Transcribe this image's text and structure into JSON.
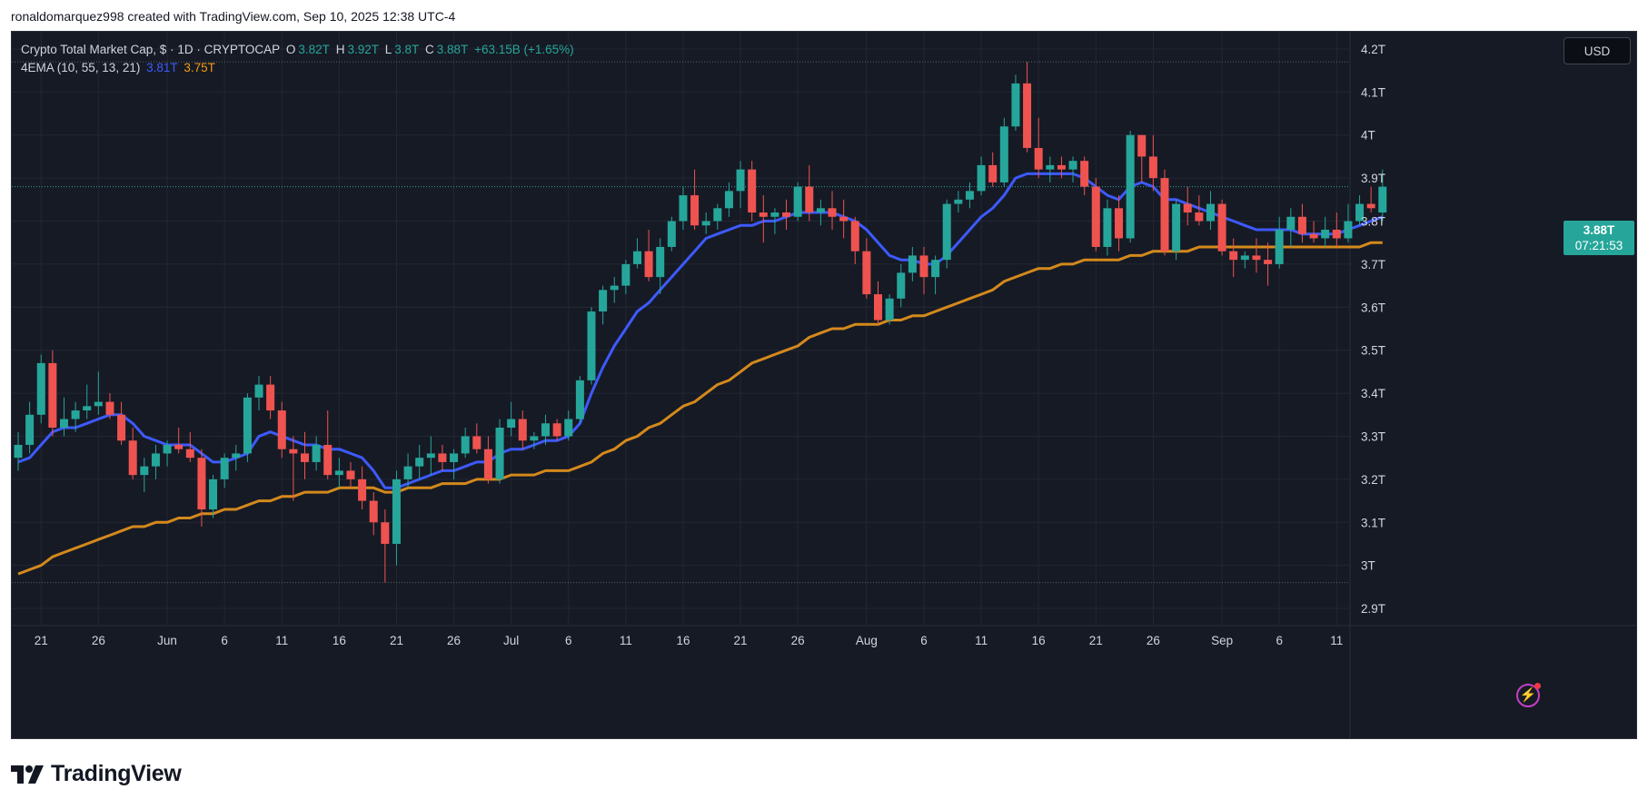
{
  "attribution": "ronaldomarquez998 created with TradingView.com, Sep 10, 2025 12:38 UTC-4",
  "legend": {
    "symbol": "Crypto Total Market Cap, $ · 1D · CRYPTOCAP",
    "open_label": "O",
    "open": "3.82T",
    "high_label": "H",
    "high": "3.92T",
    "low_label": "L",
    "low": "3.8T",
    "close_label": "C",
    "close": "3.88T",
    "change": "+63.15B (+1.65%)",
    "indicator": "4EMA (10, 55, 13, 21)",
    "ema_fast": "3.81T",
    "ema_slow": "3.75T"
  },
  "currency_button": "USD",
  "last_price": {
    "value": "3.88T",
    "countdown": "07:21:53"
  },
  "branding": "TradingView",
  "colors": {
    "up": "#26a69a",
    "down": "#ef5350",
    "ema_fast": "#3d5afe",
    "ema_slow": "#d4891c",
    "background": "#161a25",
    "grid": "#232733"
  },
  "chart_data": {
    "type": "candlestick",
    "unit": "T",
    "ylim": [
      2.86,
      4.24
    ],
    "y_ticks": [
      2.9,
      3.0,
      3.1,
      3.2,
      3.3,
      3.4,
      3.5,
      3.6,
      3.7,
      3.8,
      3.9,
      4.0,
      4.1,
      4.2
    ],
    "y_tick_labels": [
      "2.9T",
      "3T",
      "3.1T",
      "3.2T",
      "3.3T",
      "3.4T",
      "3.5T",
      "3.6T",
      "3.7T",
      "3.8T",
      "3.9T",
      "4T",
      "4.1T",
      "4.2T"
    ],
    "x_ticks": [
      {
        "day": 2,
        "label": "21"
      },
      {
        "day": 7,
        "label": "26"
      },
      {
        "day": 13,
        "label": "Jun"
      },
      {
        "day": 18,
        "label": "6"
      },
      {
        "day": 23,
        "label": "11"
      },
      {
        "day": 28,
        "label": "16"
      },
      {
        "day": 33,
        "label": "21"
      },
      {
        "day": 38,
        "label": "26"
      },
      {
        "day": 43,
        "label": "Jul"
      },
      {
        "day": 48,
        "label": "6"
      },
      {
        "day": 53,
        "label": "11"
      },
      {
        "day": 58,
        "label": "16"
      },
      {
        "day": 63,
        "label": "21"
      },
      {
        "day": 68,
        "label": "26"
      },
      {
        "day": 74,
        "label": "Aug"
      },
      {
        "day": 79,
        "label": "6"
      },
      {
        "day": 84,
        "label": "11"
      },
      {
        "day": 89,
        "label": "16"
      },
      {
        "day": 94,
        "label": "21"
      },
      {
        "day": 99,
        "label": "26"
      },
      {
        "day": 105,
        "label": "Sep"
      },
      {
        "day": 110,
        "label": "6"
      },
      {
        "day": 115,
        "label": "11"
      }
    ],
    "range_high": 4.17,
    "range_low": 2.96,
    "last_close": 3.88,
    "candles": [
      [
        3.25,
        3.31,
        3.22,
        3.28
      ],
      [
        3.28,
        3.38,
        3.26,
        3.35
      ],
      [
        3.35,
        3.49,
        3.33,
        3.47
      ],
      [
        3.47,
        3.5,
        3.3,
        3.32
      ],
      [
        3.32,
        3.39,
        3.3,
        3.34
      ],
      [
        3.34,
        3.38,
        3.31,
        3.36
      ],
      [
        3.36,
        3.42,
        3.34,
        3.37
      ],
      [
        3.37,
        3.45,
        3.35,
        3.38
      ],
      [
        3.38,
        3.4,
        3.34,
        3.35
      ],
      [
        3.35,
        3.38,
        3.28,
        3.29
      ],
      [
        3.29,
        3.32,
        3.2,
        3.21
      ],
      [
        3.21,
        3.25,
        3.17,
        3.23
      ],
      [
        3.23,
        3.28,
        3.2,
        3.26
      ],
      [
        3.26,
        3.29,
        3.23,
        3.28
      ],
      [
        3.28,
        3.32,
        3.26,
        3.27
      ],
      [
        3.27,
        3.31,
        3.24,
        3.25
      ],
      [
        3.25,
        3.27,
        3.09,
        3.13
      ],
      [
        3.13,
        3.21,
        3.11,
        3.2
      ],
      [
        3.2,
        3.26,
        3.18,
        3.25
      ],
      [
        3.25,
        3.28,
        3.22,
        3.26
      ],
      [
        3.26,
        3.4,
        3.24,
        3.39
      ],
      [
        3.39,
        3.44,
        3.36,
        3.42
      ],
      [
        3.42,
        3.44,
        3.34,
        3.36
      ],
      [
        3.36,
        3.38,
        3.25,
        3.27
      ],
      [
        3.27,
        3.3,
        3.15,
        3.26
      ],
      [
        3.26,
        3.31,
        3.2,
        3.24
      ],
      [
        3.24,
        3.3,
        3.22,
        3.28
      ],
      [
        3.28,
        3.36,
        3.2,
        3.21
      ],
      [
        3.21,
        3.25,
        3.18,
        3.22
      ],
      [
        3.22,
        3.24,
        3.18,
        3.2
      ],
      [
        3.2,
        3.23,
        3.13,
        3.15
      ],
      [
        3.15,
        3.17,
        3.07,
        3.1
      ],
      [
        3.1,
        3.13,
        2.96,
        3.05
      ],
      [
        3.05,
        3.22,
        3.0,
        3.2
      ],
      [
        3.2,
        3.26,
        3.18,
        3.23
      ],
      [
        3.23,
        3.28,
        3.2,
        3.25
      ],
      [
        3.25,
        3.3,
        3.21,
        3.26
      ],
      [
        3.26,
        3.28,
        3.22,
        3.24
      ],
      [
        3.24,
        3.27,
        3.2,
        3.26
      ],
      [
        3.26,
        3.32,
        3.25,
        3.3
      ],
      [
        3.3,
        3.33,
        3.26,
        3.27
      ],
      [
        3.27,
        3.3,
        3.19,
        3.2
      ],
      [
        3.2,
        3.34,
        3.19,
        3.32
      ],
      [
        3.32,
        3.38,
        3.3,
        3.34
      ],
      [
        3.34,
        3.36,
        3.27,
        3.29
      ],
      [
        3.29,
        3.31,
        3.27,
        3.3
      ],
      [
        3.3,
        3.35,
        3.28,
        3.33
      ],
      [
        3.33,
        3.34,
        3.29,
        3.3
      ],
      [
        3.3,
        3.36,
        3.29,
        3.34
      ],
      [
        3.34,
        3.44,
        3.33,
        3.43
      ],
      [
        3.43,
        3.6,
        3.42,
        3.59
      ],
      [
        3.59,
        3.65,
        3.56,
        3.64
      ],
      [
        3.64,
        3.67,
        3.61,
        3.65
      ],
      [
        3.65,
        3.71,
        3.63,
        3.7
      ],
      [
        3.7,
        3.76,
        3.69,
        3.73
      ],
      [
        3.73,
        3.78,
        3.66,
        3.67
      ],
      [
        3.67,
        3.76,
        3.63,
        3.74
      ],
      [
        3.74,
        3.81,
        3.73,
        3.8
      ],
      [
        3.8,
        3.88,
        3.78,
        3.86
      ],
      [
        3.86,
        3.92,
        3.78,
        3.79
      ],
      [
        3.79,
        3.82,
        3.77,
        3.8
      ],
      [
        3.8,
        3.84,
        3.78,
        3.83
      ],
      [
        3.83,
        3.89,
        3.81,
        3.87
      ],
      [
        3.87,
        3.94,
        3.83,
        3.92
      ],
      [
        3.92,
        3.94,
        3.8,
        3.82
      ],
      [
        3.82,
        3.86,
        3.75,
        3.81
      ],
      [
        3.81,
        3.83,
        3.77,
        3.82
      ],
      [
        3.82,
        3.85,
        3.78,
        3.81
      ],
      [
        3.81,
        3.89,
        3.8,
        3.88
      ],
      [
        3.88,
        3.93,
        3.8,
        3.82
      ],
      [
        3.82,
        3.85,
        3.79,
        3.83
      ],
      [
        3.83,
        3.87,
        3.78,
        3.81
      ],
      [
        3.81,
        3.85,
        3.76,
        3.8
      ],
      [
        3.8,
        3.81,
        3.7,
        3.73
      ],
      [
        3.73,
        3.76,
        3.62,
        3.63
      ],
      [
        3.63,
        3.66,
        3.56,
        3.57
      ],
      [
        3.57,
        3.63,
        3.56,
        3.62
      ],
      [
        3.62,
        3.7,
        3.6,
        3.68
      ],
      [
        3.68,
        3.74,
        3.66,
        3.72
      ],
      [
        3.72,
        3.74,
        3.63,
        3.67
      ],
      [
        3.67,
        3.72,
        3.63,
        3.71
      ],
      [
        3.71,
        3.85,
        3.69,
        3.84
      ],
      [
        3.84,
        3.87,
        3.82,
        3.85
      ],
      [
        3.85,
        3.89,
        3.83,
        3.87
      ],
      [
        3.87,
        3.95,
        3.86,
        3.93
      ],
      [
        3.93,
        3.96,
        3.88,
        3.89
      ],
      [
        3.89,
        4.04,
        3.88,
        4.02
      ],
      [
        4.02,
        4.14,
        4.01,
        4.12
      ],
      [
        4.12,
        4.17,
        3.96,
        3.97
      ],
      [
        3.97,
        4.04,
        3.9,
        3.92
      ],
      [
        3.92,
        3.95,
        3.89,
        3.93
      ],
      [
        3.93,
        3.95,
        3.9,
        3.92
      ],
      [
        3.92,
        3.95,
        3.89,
        3.94
      ],
      [
        3.94,
        3.95,
        3.86,
        3.88
      ],
      [
        3.88,
        3.9,
        3.73,
        3.74
      ],
      [
        3.74,
        3.85,
        3.72,
        3.83
      ],
      [
        3.83,
        3.86,
        3.73,
        3.76
      ],
      [
        3.76,
        4.01,
        3.75,
        4.0
      ],
      [
        4.0,
        4.0,
        3.89,
        3.95
      ],
      [
        3.95,
        4.0,
        3.87,
        3.9
      ],
      [
        3.9,
        3.92,
        3.72,
        3.73
      ],
      [
        3.73,
        3.85,
        3.71,
        3.84
      ],
      [
        3.84,
        3.88,
        3.79,
        3.82
      ],
      [
        3.82,
        3.86,
        3.79,
        3.8
      ],
      [
        3.8,
        3.87,
        3.78,
        3.84
      ],
      [
        3.84,
        3.85,
        3.72,
        3.73
      ],
      [
        3.73,
        3.76,
        3.67,
        3.71
      ],
      [
        3.71,
        3.73,
        3.69,
        3.72
      ],
      [
        3.72,
        3.76,
        3.68,
        3.71
      ],
      [
        3.71,
        3.75,
        3.65,
        3.7
      ],
      [
        3.7,
        3.81,
        3.69,
        3.78
      ],
      [
        3.78,
        3.83,
        3.74,
        3.81
      ],
      [
        3.81,
        3.84,
        3.75,
        3.77
      ],
      [
        3.77,
        3.8,
        3.75,
        3.76
      ],
      [
        3.76,
        3.81,
        3.74,
        3.78
      ],
      [
        3.78,
        3.82,
        3.74,
        3.76
      ],
      [
        3.76,
        3.84,
        3.75,
        3.8
      ],
      [
        3.8,
        3.86,
        3.79,
        3.84
      ],
      [
        3.84,
        3.88,
        3.82,
        3.83
      ],
      [
        3.82,
        3.92,
        3.8,
        3.88
      ]
    ],
    "series": [
      {
        "values": [
          3.24,
          3.25,
          3.28,
          3.31,
          3.32,
          3.32,
          3.33,
          3.34,
          3.35,
          3.35,
          3.33,
          3.3,
          3.29,
          3.28,
          3.28,
          3.28,
          3.26,
          3.24,
          3.24,
          3.25,
          3.26,
          3.3,
          3.31,
          3.3,
          3.29,
          3.28,
          3.28,
          3.27,
          3.27,
          3.26,
          3.25,
          3.22,
          3.18,
          3.18,
          3.19,
          3.2,
          3.21,
          3.22,
          3.22,
          3.23,
          3.24,
          3.24,
          3.26,
          3.27,
          3.27,
          3.28,
          3.29,
          3.29,
          3.3,
          3.33,
          3.4,
          3.46,
          3.51,
          3.55,
          3.59,
          3.61,
          3.64,
          3.67,
          3.7,
          3.73,
          3.76,
          3.77,
          3.78,
          3.79,
          3.79,
          3.8,
          3.8,
          3.81,
          3.82,
          3.82,
          3.82,
          3.82,
          3.81,
          3.8,
          3.78,
          3.75,
          3.72,
          3.71,
          3.71,
          3.7,
          3.7,
          3.72,
          3.75,
          3.78,
          3.81,
          3.83,
          3.86,
          3.9,
          3.91,
          3.91,
          3.91,
          3.91,
          3.91,
          3.9,
          3.88,
          3.86,
          3.85,
          3.88,
          3.89,
          3.88,
          3.85,
          3.85,
          3.84,
          3.83,
          3.82,
          3.81,
          3.8,
          3.79,
          3.78,
          3.78,
          3.78,
          3.78,
          3.77,
          3.77,
          3.77,
          3.77,
          3.78,
          3.79,
          3.8,
          3.81
        ]
      },
      {
        "values": [
          2.98,
          2.99,
          3.0,
          3.02,
          3.03,
          3.04,
          3.05,
          3.06,
          3.07,
          3.08,
          3.09,
          3.09,
          3.1,
          3.1,
          3.11,
          3.11,
          3.12,
          3.12,
          3.13,
          3.13,
          3.14,
          3.15,
          3.15,
          3.16,
          3.16,
          3.17,
          3.17,
          3.17,
          3.18,
          3.18,
          3.18,
          3.18,
          3.17,
          3.17,
          3.18,
          3.18,
          3.18,
          3.19,
          3.19,
          3.19,
          3.2,
          3.2,
          3.2,
          3.21,
          3.21,
          3.21,
          3.22,
          3.22,
          3.22,
          3.23,
          3.24,
          3.26,
          3.27,
          3.29,
          3.3,
          3.32,
          3.33,
          3.35,
          3.37,
          3.38,
          3.4,
          3.42,
          3.43,
          3.45,
          3.47,
          3.48,
          3.49,
          3.5,
          3.51,
          3.53,
          3.54,
          3.55,
          3.55,
          3.56,
          3.56,
          3.56,
          3.57,
          3.57,
          3.58,
          3.58,
          3.59,
          3.6,
          3.61,
          3.62,
          3.63,
          3.64,
          3.66,
          3.67,
          3.68,
          3.69,
          3.69,
          3.7,
          3.7,
          3.71,
          3.71,
          3.71,
          3.71,
          3.72,
          3.72,
          3.73,
          3.73,
          3.73,
          3.73,
          3.74,
          3.74,
          3.74,
          3.74,
          3.74,
          3.74,
          3.74,
          3.74,
          3.74,
          3.74,
          3.74,
          3.74,
          3.74,
          3.74,
          3.74,
          3.75,
          3.75
        ]
      }
    ]
  }
}
